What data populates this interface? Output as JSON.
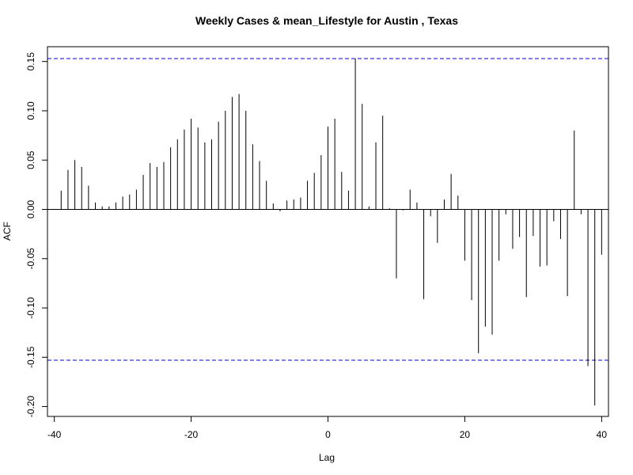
{
  "chart_data": {
    "type": "bar",
    "title": "Weekly Cases & mean_Lifestyle for Austin , Texas",
    "xlabel": "Lag",
    "ylabel": "ACF",
    "xlim": [
      -41,
      41
    ],
    "ylim": [
      -0.21,
      0.165
    ],
    "xticks": [
      -40,
      -20,
      0,
      20,
      40
    ],
    "xtick_labels": [
      "-40",
      "-20",
      "0",
      "20",
      "40"
    ],
    "yticks": [
      -0.2,
      -0.15,
      -0.1,
      -0.05,
      0.0,
      0.05,
      0.1,
      0.15
    ],
    "ytick_labels": [
      "-0.20",
      "-0.15",
      "-0.10",
      "-0.05",
      "0.00",
      "0.05",
      "0.10",
      "0.15"
    ],
    "confidence_bounds": [
      0.153,
      -0.153
    ],
    "bound_color": "#0000cc",
    "bar_color": "#000000",
    "x": [
      -40,
      -39,
      -38,
      -37,
      -36,
      -35,
      -34,
      -33,
      -32,
      -31,
      -30,
      -29,
      -28,
      -27,
      -26,
      -25,
      -24,
      -23,
      -22,
      -21,
      -20,
      -19,
      -18,
      -17,
      -16,
      -15,
      -14,
      -13,
      -12,
      -11,
      -10,
      -9,
      -8,
      -7,
      -6,
      -5,
      -4,
      -3,
      -2,
      -1,
      0,
      1,
      2,
      3,
      4,
      5,
      6,
      7,
      8,
      9,
      10,
      11,
      12,
      13,
      14,
      15,
      16,
      17,
      18,
      19,
      20,
      21,
      22,
      23,
      24,
      25,
      26,
      27,
      28,
      29,
      30,
      31,
      32,
      33,
      34,
      35,
      36,
      37,
      38,
      39,
      40
    ],
    "values": [
      0.0,
      0.019,
      0.04,
      0.05,
      0.043,
      0.024,
      0.007,
      0.003,
      0.003,
      0.007,
      0.013,
      0.015,
      0.02,
      0.035,
      0.047,
      0.043,
      0.048,
      0.063,
      0.071,
      0.081,
      0.092,
      0.083,
      0.068,
      0.071,
      0.089,
      0.1,
      0.114,
      0.117,
      0.1,
      0.066,
      0.049,
      0.029,
      0.006,
      -0.002,
      0.009,
      0.01,
      0.012,
      0.029,
      0.037,
      0.055,
      0.084,
      0.092,
      0.038,
      0.019,
      0.153,
      0.107,
      0.003,
      0.068,
      0.095,
      0.001,
      -0.07,
      -0.001,
      0.02,
      0.007,
      -0.091,
      -0.007,
      -0.034,
      0.01,
      0.036,
      0.014,
      -0.052,
      -0.092,
      -0.146,
      -0.119,
      -0.127,
      -0.052,
      -0.005,
      -0.04,
      -0.028,
      -0.089,
      -0.027,
      -0.058,
      -0.057,
      -0.012,
      -0.03,
      -0.088,
      0.08,
      -0.005,
      -0.159,
      -0.199,
      -0.046
    ],
    "grid": false
  }
}
